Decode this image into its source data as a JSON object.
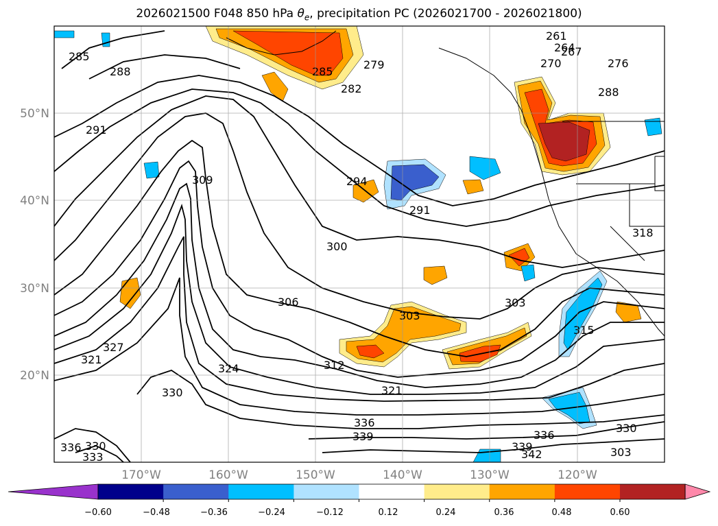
{
  "title": {
    "prefix": "2026021500 F048 850 hPa ",
    "symbol": "θ",
    "subscript": "e",
    "suffix": ", precipitation PC (2026021700 - 2026021800)"
  },
  "map": {
    "projection": "lat-lon",
    "lon_range": [
      -180,
      -110
    ],
    "lat_range": [
      10,
      60
    ],
    "lon_ticks": [
      "170°W",
      "160°W",
      "150°W",
      "140°W",
      "130°W",
      "120°W"
    ],
    "lat_ticks": [
      "20°N",
      "30°N",
      "40°N",
      "50°N"
    ],
    "gridlines": true,
    "coastlines": true,
    "borders": true
  },
  "contour_labels": [
    "261",
    "264",
    "267",
    "270",
    "276",
    "279",
    "282",
    "285",
    "288",
    "291",
    "294",
    "300",
    "303",
    "306",
    "309",
    "312",
    "315",
    "318",
    "321",
    "324",
    "327",
    "330",
    "333",
    "336",
    "339",
    "342"
  ],
  "colorbar": {
    "orientation": "horizontal",
    "extend": "both",
    "tick_labels": [
      "−0.60",
      "−0.48",
      "−0.36",
      "−0.24",
      "−0.12",
      "0.12",
      "0.24",
      "0.36",
      "0.48",
      "0.60"
    ],
    "colors": [
      "#9932cc",
      "#00008b",
      "#3a5fcd",
      "#00bfff",
      "#b0e2ff",
      "#ffffff",
      "#ffec8b",
      "#ffa500",
      "#ff4500",
      "#b22222",
      "#ff88aa"
    ]
  },
  "fill_colors": {
    "neg1": "#b0e2ff",
    "neg2": "#00bfff",
    "neg3": "#3a5fcd",
    "pos1": "#ffec8b",
    "pos2": "#ffa500",
    "pos3": "#ff4500",
    "pos4": "#b22222"
  }
}
